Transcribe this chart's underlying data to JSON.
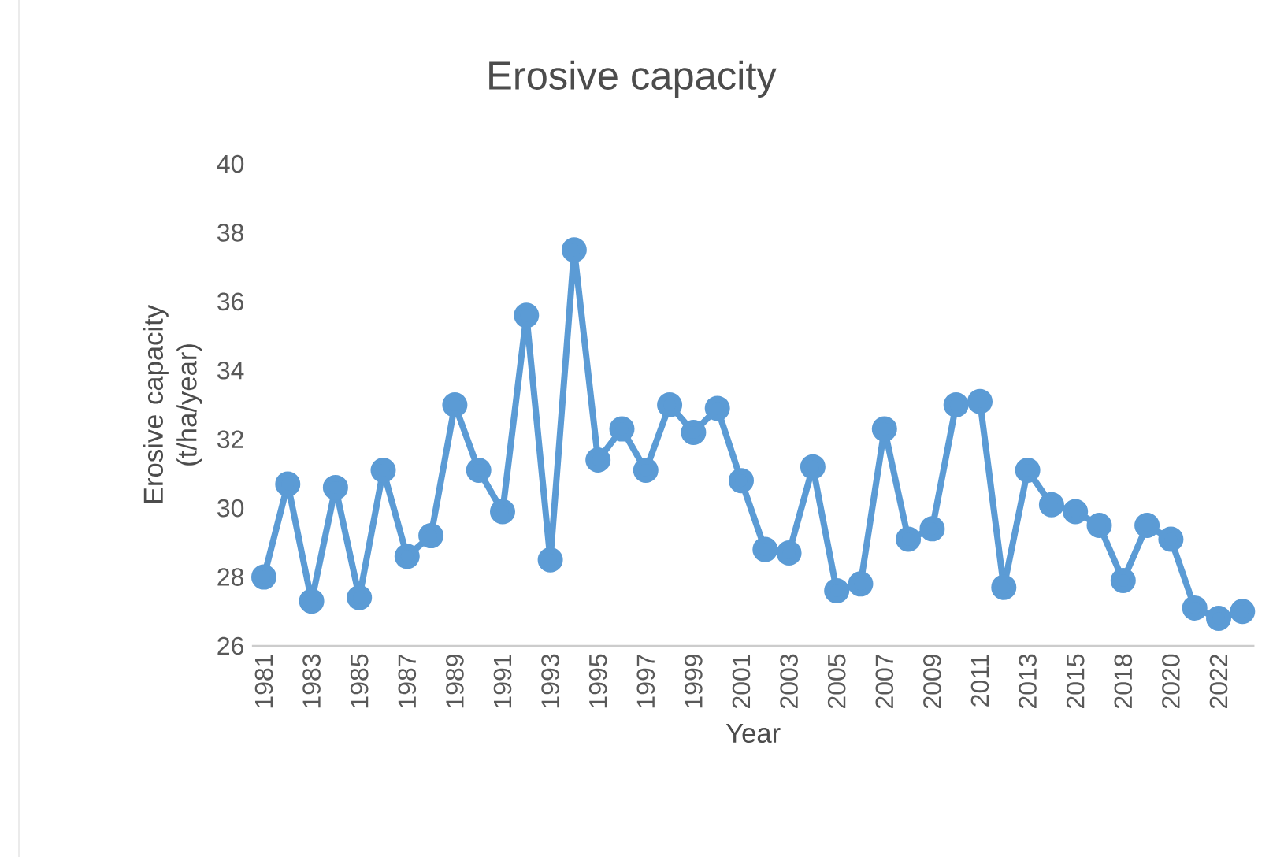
{
  "chart_data": {
    "type": "line",
    "title": "Erosive capacity",
    "xlabel": "Year",
    "ylabel": "Erosive capacity (t/ha/year)",
    "categories": [
      "1981",
      null,
      "1983",
      null,
      "1985",
      null,
      "1987",
      null,
      "1989",
      null,
      "1991",
      null,
      "1993",
      null,
      "1995",
      null,
      "1997",
      null,
      "1999",
      null,
      "2001",
      null,
      "2003",
      null,
      "2005",
      null,
      "2007",
      null,
      "2009",
      null,
      "2011",
      null,
      "2013",
      null,
      "2015",
      null,
      "2018",
      null,
      "2020",
      null,
      "2022",
      null
    ],
    "series": [
      {
        "color": "#5b9bd5",
        "values": [
          28.0,
          30.7,
          27.3,
          30.6,
          27.4,
          31.1,
          28.6,
          29.2,
          33.0,
          31.1,
          29.9,
          35.6,
          28.5,
          37.5,
          31.4,
          32.3,
          31.1,
          33.0,
          32.2,
          32.9,
          30.8,
          28.8,
          28.7,
          31.2,
          27.6,
          27.8,
          32.3,
          29.1,
          29.4,
          33.0,
          33.1,
          27.7,
          31.1,
          30.1,
          29.9,
          29.5,
          27.9,
          29.5,
          29.1,
          27.1,
          26.8,
          27.0
        ]
      }
    ],
    "ylim": [
      26,
      40
    ],
    "yticks": [
      26,
      28,
      30,
      32,
      34,
      36,
      38,
      40
    ],
    "grid": false,
    "marker": "circle",
    "line_style": "solid"
  }
}
